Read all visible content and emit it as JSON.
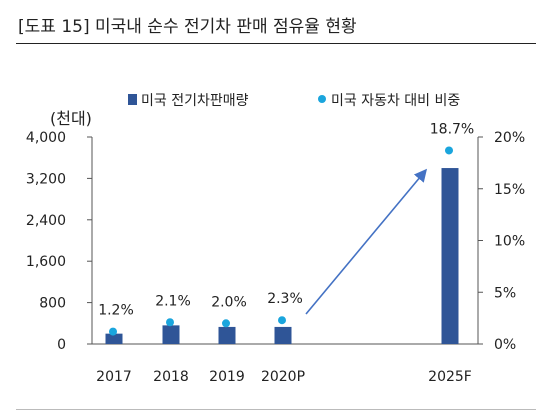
{
  "header": {
    "title": "[도표 15] 미국내 순수 전기차 판매 점유율 현황"
  },
  "colors": {
    "bar": "#2f5597",
    "dot": "#1aa5dd",
    "arrow": "#4472c4",
    "axis": "#555555"
  },
  "chart_data": {
    "type": "bar",
    "title": "[도표 15] 미국내 순수 전기차 판매 점유율 현황",
    "categories": [
      "2017",
      "2018",
      "2019",
      "2020P",
      "2025F"
    ],
    "series": [
      {
        "name": "미국 전기차판매량",
        "type": "bar",
        "axis": "left",
        "values": [
          200,
          360,
          330,
          330,
          3400
        ]
      },
      {
        "name": "미국 자동차 대비 비중",
        "type": "scatter",
        "axis": "right",
        "values": [
          1.2,
          2.1,
          2.0,
          2.3,
          18.7
        ],
        "labels": [
          "1.2%",
          "2.1%",
          "2.0%",
          "2.3%",
          "18.7%"
        ]
      }
    ],
    "ylabel": "(천대)",
    "ylim": [
      0,
      4000
    ],
    "yticks": [
      "4,000",
      "3,200",
      "2,400",
      "1,600",
      "800",
      "0"
    ],
    "ytick_values": [
      4000,
      3200,
      2400,
      1600,
      800,
      0
    ],
    "y2lim": [
      0,
      20
    ],
    "y2ticks": [
      "20%",
      "15%",
      "10%",
      "5%",
      "0%"
    ],
    "y2tick_values": [
      20,
      15,
      10,
      5,
      0
    ],
    "legend_position": "top",
    "grid": false
  }
}
